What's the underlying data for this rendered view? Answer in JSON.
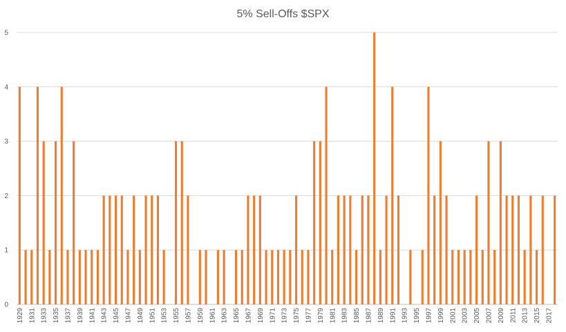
{
  "chart_data": {
    "type": "bar",
    "title": "5% Sell-Offs $SPX",
    "xlabel": "",
    "ylabel": "",
    "ylim": [
      0,
      5
    ],
    "yticks": [
      0,
      1,
      2,
      3,
      4,
      5
    ],
    "grid": true,
    "legend": "none",
    "color": "#ED7D31",
    "categories": [
      "1929",
      "1930",
      "1931",
      "1932",
      "1933",
      "1934",
      "1935",
      "1936",
      "1937",
      "1938",
      "1939",
      "1940",
      "1941",
      "1942",
      "1943",
      "1944",
      "1945",
      "1946",
      "1947",
      "1948",
      "1949",
      "1950",
      "1951",
      "1952",
      "1953",
      "1954",
      "1955",
      "1956",
      "1957",
      "1958",
      "1959",
      "1960",
      "1961",
      "1962",
      "1963",
      "1964",
      "1965",
      "1966",
      "1967",
      "1968",
      "1969",
      "1970",
      "1971",
      "1972",
      "1973",
      "1974",
      "1975",
      "1976",
      "1977",
      "1978",
      "1979",
      "1980",
      "1981",
      "1982",
      "1983",
      "1984",
      "1985",
      "1986",
      "1987",
      "1988",
      "1989",
      "1990",
      "1991",
      "1992",
      "1993",
      "1994",
      "1995",
      "1996",
      "1997",
      "1998",
      "1999",
      "2000",
      "2001",
      "2002",
      "2003",
      "2004",
      "2005",
      "2006",
      "2007",
      "2008",
      "2009",
      "2010",
      "2011",
      "2012",
      "2013",
      "2014",
      "2015",
      "2016",
      "2017",
      "2018"
    ],
    "tick_labels": [
      "1929",
      "1931",
      "1933",
      "1935",
      "1937",
      "1939",
      "1941",
      "1943",
      "1945",
      "1947",
      "1949",
      "1951",
      "1953",
      "1955",
      "1957",
      "1959",
      "1961",
      "1963",
      "1965",
      "1967",
      "1969",
      "1971",
      "1973",
      "1975",
      "1977",
      "1979",
      "1981",
      "1983",
      "1985",
      "1987",
      "1989",
      "1991",
      "1993",
      "1995",
      "1997",
      "1999",
      "2001",
      "2003",
      "2005",
      "2007",
      "2009",
      "2011",
      "2013",
      "2015",
      "2017"
    ],
    "values": [
      4,
      1,
      1,
      4,
      3,
      1,
      3,
      4,
      1,
      3,
      1,
      1,
      1,
      1,
      2,
      2,
      2,
      2,
      1,
      2,
      1,
      2,
      2,
      2,
      1,
      0,
      3,
      3,
      2,
      0,
      1,
      1,
      0,
      1,
      1,
      0,
      1,
      1,
      2,
      2,
      2,
      1,
      1,
      1,
      1,
      1,
      2,
      1,
      1,
      3,
      3,
      4,
      1,
      2,
      2,
      2,
      1,
      2,
      2,
      5,
      1,
      2,
      4,
      2,
      0,
      1,
      0,
      1,
      4,
      2,
      3,
      2,
      1,
      1,
      1,
      1,
      2,
      1,
      3,
      1,
      3,
      2,
      2,
      2,
      1,
      2,
      1,
      2,
      0,
      2
    ]
  }
}
